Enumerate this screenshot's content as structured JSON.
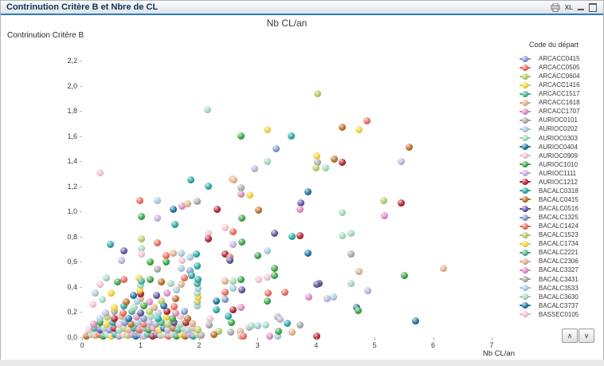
{
  "window": {
    "title": "Contrinution Critère B et Nbre de CL",
    "icons": {
      "excel_label": "XL"
    }
  },
  "legend_scroll": {
    "up_glyph": "∧",
    "down_glyph": "∨"
  },
  "chart_data": {
    "type": "scatter",
    "title": "Nb CL/an",
    "xlabel": "Nb CL/an",
    "ylabel": "Contrinution Critère B",
    "xlim": [
      0,
      7
    ],
    "ylim": [
      0,
      2.2
    ],
    "x_ticks": [
      "0",
      "1",
      "2",
      "3",
      "4",
      "5",
      "6",
      "7"
    ],
    "y_ticks": [
      "0,0",
      "0,2",
      "0,4",
      "0,6",
      "0,8",
      "1,0",
      "1,2",
      "1,4",
      "1,6",
      "1,8",
      "2,0",
      "2,2"
    ],
    "grid": false,
    "legend_position": "right",
    "legend_title": "Code du départ",
    "palette": [
      "#7E9AC8",
      "#EC6A5A",
      "#B5CC6A",
      "#F2D33E",
      "#4FAE92",
      "#DFB18C",
      "#DE8BC0",
      "#A9A9A9",
      "#A5CBDC",
      "#A5D9B8",
      "#1D739E",
      "#F5C3D4",
      "#3DA348",
      "#C2B2DC",
      "#B02231",
      "#25A8A2",
      "#BD6C29",
      "#62539C"
    ],
    "legend": [
      {
        "label": "ARCACC0415",
        "color_index": 0
      },
      {
        "label": "ARCACC0505",
        "color_index": 1
      },
      {
        "label": "ARCACC0604",
        "color_index": 2
      },
      {
        "label": "ARCACC1416",
        "color_index": 3
      },
      {
        "label": "ARCACC1517",
        "color_index": 4
      },
      {
        "label": "ARCACC1618",
        "color_index": 5
      },
      {
        "label": "ARCACC1707",
        "color_index": 6
      },
      {
        "label": "AURIOC0101",
        "color_index": 7
      },
      {
        "label": "AURIOC0202",
        "color_index": 8
      },
      {
        "label": "AURIOC0303",
        "color_index": 9
      },
      {
        "label": "AURIOC0404",
        "color_index": 10
      },
      {
        "label": "AURIOC0909",
        "color_index": 11
      },
      {
        "label": "AURIOC1010",
        "color_index": 12
      },
      {
        "label": "AURIOC1111",
        "color_index": 13
      },
      {
        "label": "AURIOC1212",
        "color_index": 14
      },
      {
        "label": "BACALC0318",
        "color_index": 15
      },
      {
        "label": "BACALC0415",
        "color_index": 16
      },
      {
        "label": "BACALC0516",
        "color_index": 17
      },
      {
        "label": "BACALC1325",
        "color_index": 0
      },
      {
        "label": "BACALC1424",
        "color_index": 1
      },
      {
        "label": "BACALC1523",
        "color_index": 2
      },
      {
        "label": "BACALC1734",
        "color_index": 3
      },
      {
        "label": "BACALC2221",
        "color_index": 4
      },
      {
        "label": "BACALC2306",
        "color_index": 5
      },
      {
        "label": "BACALC3327",
        "color_index": 6
      },
      {
        "label": "BACALC3431",
        "color_index": 7
      },
      {
        "label": "BACALC3533",
        "color_index": 8
      },
      {
        "label": "BACALC3630",
        "color_index": 9
      },
      {
        "label": "BACALC3737",
        "color_index": 10
      },
      {
        "label": "BASSEC0105",
        "color_index": 11
      }
    ],
    "points": [
      [
        2.15,
        1.81,
        9
      ],
      [
        4.03,
        1.94,
        2
      ],
      [
        3.16,
        1.65,
        3
      ],
      [
        2.72,
        1.6,
        12
      ],
      [
        3.58,
        1.6,
        15
      ],
      [
        3.31,
        1.5,
        0
      ],
      [
        3.16,
        1.4,
        9
      ],
      [
        2.95,
        1.34,
        13
      ],
      [
        4.44,
        1.67,
        16
      ],
      [
        4.73,
        1.65,
        3
      ],
      [
        4.87,
        1.72,
        1
      ],
      [
        5.59,
        1.51,
        16
      ],
      [
        5.46,
        1.4,
        13
      ],
      [
        4.01,
        1.44,
        3
      ],
      [
        4.03,
        1.39,
        7
      ],
      [
        4.0,
        1.35,
        2
      ],
      [
        4.16,
        1.35,
        9
      ],
      [
        4.31,
        1.42,
        16
      ],
      [
        4.44,
        1.39,
        14
      ],
      [
        2.57,
        1.26,
        5
      ],
      [
        1.86,
        1.25,
        15
      ],
      [
        2.16,
        1.2,
        15
      ],
      [
        2.59,
        1.25,
        5
      ],
      [
        2.72,
        1.19,
        7
      ],
      [
        2.72,
        1.14,
        6
      ],
      [
        2.86,
        1.13,
        3
      ],
      [
        3.86,
        1.16,
        10
      ],
      [
        3.74,
        1.07,
        17
      ],
      [
        3.73,
        1.02,
        6
      ],
      [
        3.01,
        1.01,
        16
      ],
      [
        5.16,
        1.09,
        2
      ],
      [
        5.45,
        1.07,
        14
      ],
      [
        5.17,
        0.97,
        6
      ],
      [
        4.45,
        0.99,
        9
      ],
      [
        0.31,
        1.31,
        11
      ],
      [
        0.99,
        1.09,
        1
      ],
      [
        1.29,
        1.09,
        8
      ],
      [
        1.56,
        1.02,
        10
      ],
      [
        1.71,
        1.04,
        6
      ],
      [
        1.81,
        1.06,
        5
      ],
      [
        1.97,
        1.08,
        7
      ],
      [
        2.31,
        1.02,
        14
      ],
      [
        1.02,
        0.96,
        12
      ],
      [
        1.29,
        0.95,
        13
      ],
      [
        1.58,
        0.9,
        15
      ],
      [
        2.73,
        0.95,
        12
      ],
      [
        2.45,
        0.87,
        11
      ],
      [
        2.16,
        0.83,
        11
      ],
      [
        2.58,
        0.84,
        1
      ],
      [
        2.16,
        0.78,
        14
      ],
      [
        1.01,
        0.78,
        2
      ],
      [
        0.49,
        0.74,
        15
      ],
      [
        1.29,
        0.75,
        1
      ],
      [
        2.58,
        0.74,
        13
      ],
      [
        2.73,
        0.76,
        12
      ],
      [
        0.72,
        0.69,
        17
      ],
      [
        1.02,
        0.71,
        9
      ],
      [
        1.01,
        0.66,
        11
      ],
      [
        1.44,
        0.65,
        1
      ],
      [
        1.56,
        0.67,
        5
      ],
      [
        1.7,
        0.67,
        8
      ],
      [
        0.68,
        0.61,
        13
      ],
      [
        1.43,
        0.6,
        12
      ],
      [
        1.71,
        0.61,
        11
      ],
      [
        1.84,
        0.64,
        8
      ],
      [
        1.96,
        0.66,
        15
      ],
      [
        2.45,
        0.66,
        14
      ],
      [
        2.53,
        0.64,
        1
      ],
      [
        1.16,
        0.6,
        12
      ],
      [
        1.29,
        0.54,
        7
      ],
      [
        1.7,
        0.55,
        8
      ],
      [
        1.84,
        0.53,
        0
      ],
      [
        1.97,
        0.57,
        15
      ],
      [
        2.52,
        0.61,
        17
      ],
      [
        3.29,
        0.83,
        17
      ],
      [
        3.59,
        0.8,
        15
      ],
      [
        3.73,
        0.81,
        14
      ],
      [
        4.45,
        0.81,
        9
      ],
      [
        4.6,
        0.83,
        9
      ],
      [
        3.16,
        0.69,
        8
      ],
      [
        3.0,
        0.65,
        12
      ],
      [
        3.86,
        0.67,
        10
      ],
      [
        4.6,
        0.66,
        7
      ],
      [
        3.29,
        0.55,
        12
      ],
      [
        3.29,
        0.49,
        12
      ],
      [
        3.16,
        0.48,
        11
      ],
      [
        4.73,
        0.52,
        5
      ],
      [
        6.18,
        0.55,
        5
      ],
      [
        5.51,
        0.49,
        12
      ],
      [
        4.6,
        0.43,
        9
      ],
      [
        4.88,
        0.37,
        13
      ],
      [
        4.3,
        0.32,
        8
      ],
      [
        4.19,
        0.31,
        13
      ],
      [
        4.69,
        0.24,
        10
      ],
      [
        4.72,
        0.21,
        12
      ],
      [
        5.7,
        0.13,
        10
      ],
      [
        4.05,
        0.43,
        17
      ],
      [
        4.01,
        0.01,
        14
      ],
      [
        2.44,
        0.45,
        5
      ],
      [
        2.58,
        0.45,
        9
      ],
      [
        2.72,
        0.46,
        12
      ],
      [
        3.02,
        0.46,
        11
      ],
      [
        4.01,
        0.42,
        17
      ],
      [
        2.58,
        0.39,
        8
      ],
      [
        2.73,
        0.38,
        17
      ],
      [
        2.44,
        0.36,
        1
      ],
      [
        2.44,
        0.3,
        0
      ],
      [
        2.29,
        0.29,
        10
      ],
      [
        3.18,
        0.35,
        1
      ],
      [
        3.17,
        0.29,
        12
      ],
      [
        3.46,
        0.36,
        1
      ],
      [
        3.87,
        0.32,
        6
      ],
      [
        2.72,
        0.24,
        6
      ],
      [
        2.58,
        0.22,
        14
      ],
      [
        2.5,
        0.17,
        15
      ],
      [
        2.55,
        0.12,
        12
      ],
      [
        2.3,
        0.22,
        15
      ],
      [
        2.19,
        0.15,
        11
      ],
      [
        2.17,
        0.1,
        7
      ],
      [
        2.34,
        0.05,
        2
      ],
      [
        2.54,
        0.04,
        7
      ],
      [
        2.26,
        0.02,
        16
      ],
      [
        2.7,
        0.05,
        5
      ],
      [
        2.72,
        0.01,
        5
      ],
      [
        2.76,
        0.01,
        1
      ],
      [
        2.85,
        0.08,
        13
      ],
      [
        2.9,
        0.09,
        9
      ],
      [
        3.0,
        0.09,
        8
      ],
      [
        3.14,
        0.1,
        9
      ],
      [
        3.34,
        0.16,
        7
      ],
      [
        3.38,
        0.14,
        13
      ],
      [
        3.5,
        0.11,
        15
      ],
      [
        3.73,
        0.1,
        7
      ],
      [
        3.35,
        0.01,
        8
      ],
      [
        3.36,
        0.05,
        12
      ],
      [
        3.59,
        0.04,
        5
      ],
      [
        3.21,
        0.01,
        6
      ],
      [
        0.6,
        0.44,
        12
      ],
      [
        0.71,
        0.46,
        1
      ],
      [
        1.17,
        0.46,
        12
      ],
      [
        1.75,
        0.47,
        1
      ],
      [
        1.87,
        0.49,
        15
      ],
      [
        0.23,
        0.35,
        8
      ],
      [
        0.35,
        0.3,
        9
      ],
      [
        0.18,
        0.26,
        11
      ],
      [
        1.28,
        0.33,
        17
      ],
      [
        1.45,
        0.35,
        6
      ],
      [
        1.6,
        0.31,
        16
      ],
      [
        1.52,
        0.43,
        9
      ],
      [
        1.35,
        0.44,
        16
      ],
      [
        0.88,
        0.33,
        10
      ],
      [
        0.5,
        0.35,
        3
      ],
      [
        1.62,
        0.38,
        8
      ],
      [
        1.7,
        0.42,
        5
      ],
      [
        0.3,
        0.42,
        11
      ],
      [
        0.42,
        0.47,
        9
      ],
      [
        0.98,
        0.47,
        3
      ],
      [
        1.0,
        0.31,
        5
      ],
      [
        1.0,
        0.345,
        14
      ],
      [
        0.99,
        0.38,
        3
      ],
      [
        1.0,
        0.415,
        9
      ],
      [
        1.01,
        0.45,
        4
      ],
      [
        1.97,
        0.25,
        8
      ],
      [
        1.97,
        0.285,
        2
      ],
      [
        1.98,
        0.32,
        3
      ],
      [
        1.97,
        0.355,
        9
      ],
      [
        1.98,
        0.39,
        8
      ],
      [
        1.97,
        0.425,
        4
      ],
      [
        1.98,
        0.46,
        15
      ],
      [
        0.08,
        0.012,
        16
      ],
      [
        0.15,
        0.022,
        9
      ],
      [
        0.22,
        0.015,
        5
      ],
      [
        0.29,
        0.025,
        1
      ],
      [
        0.36,
        0.01,
        12
      ],
      [
        0.43,
        0.02,
        8
      ],
      [
        0.5,
        0.012,
        3
      ],
      [
        0.57,
        0.024,
        15
      ],
      [
        0.64,
        0.01,
        7
      ],
      [
        0.71,
        0.022,
        11
      ],
      [
        0.78,
        0.014,
        2
      ],
      [
        0.85,
        0.025,
        6
      ],
      [
        0.92,
        0.01,
        10
      ],
      [
        0.99,
        0.02,
        0
      ],
      [
        1.06,
        0.012,
        13
      ],
      [
        1.13,
        0.024,
        4
      ],
      [
        1.2,
        0.01,
        14
      ],
      [
        1.27,
        0.022,
        17
      ],
      [
        1.34,
        0.013,
        5
      ],
      [
        1.41,
        0.024,
        9
      ],
      [
        1.48,
        0.01,
        1
      ],
      [
        1.55,
        0.022,
        8
      ],
      [
        1.62,
        0.012,
        12
      ],
      [
        1.69,
        0.024,
        3
      ],
      [
        1.76,
        0.012,
        16
      ],
      [
        1.83,
        0.023,
        6
      ],
      [
        1.9,
        0.012,
        15
      ],
      [
        1.97,
        0.022,
        2
      ],
      [
        2.04,
        0.013,
        7
      ],
      [
        0.12,
        0.058,
        11
      ],
      [
        0.21,
        0.07,
        4
      ],
      [
        0.3,
        0.06,
        17
      ],
      [
        0.38,
        0.072,
        8
      ],
      [
        0.47,
        0.058,
        0
      ],
      [
        0.55,
        0.07,
        14
      ],
      [
        0.63,
        0.06,
        9
      ],
      [
        0.72,
        0.072,
        2
      ],
      [
        0.8,
        0.058,
        5
      ],
      [
        0.89,
        0.07,
        15
      ],
      [
        0.97,
        0.062,
        1
      ],
      [
        1.05,
        0.072,
        7
      ],
      [
        1.14,
        0.058,
        12
      ],
      [
        1.22,
        0.07,
        6
      ],
      [
        1.31,
        0.06,
        3
      ],
      [
        1.39,
        0.072,
        10
      ],
      [
        1.47,
        0.058,
        13
      ],
      [
        1.56,
        0.07,
        16
      ],
      [
        1.64,
        0.062,
        4
      ],
      [
        1.73,
        0.072,
        9
      ],
      [
        1.81,
        0.058,
        8
      ],
      [
        1.9,
        0.07,
        5
      ],
      [
        1.98,
        0.062,
        2
      ],
      [
        0.2,
        0.105,
        6
      ],
      [
        0.31,
        0.115,
        12
      ],
      [
        0.42,
        0.102,
        3
      ],
      [
        0.52,
        0.118,
        15
      ],
      [
        0.63,
        0.105,
        11
      ],
      [
        0.73,
        0.115,
        0
      ],
      [
        0.84,
        0.102,
        16
      ],
      [
        0.94,
        0.118,
        8
      ],
      [
        1.05,
        0.105,
        1
      ],
      [
        1.15,
        0.115,
        13
      ],
      [
        1.26,
        0.102,
        7
      ],
      [
        1.36,
        0.118,
        4
      ],
      [
        1.47,
        0.105,
        2
      ],
      [
        1.57,
        0.115,
        17
      ],
      [
        1.68,
        0.102,
        9
      ],
      [
        1.78,
        0.118,
        14
      ],
      [
        1.89,
        0.108,
        5
      ],
      [
        0.3,
        0.148,
        8
      ],
      [
        0.43,
        0.162,
        2
      ],
      [
        0.55,
        0.15,
        14
      ],
      [
        0.68,
        0.165,
        5
      ],
      [
        0.8,
        0.148,
        10
      ],
      [
        0.93,
        0.162,
        6
      ],
      [
        1.05,
        0.15,
        0
      ],
      [
        1.18,
        0.165,
        9
      ],
      [
        1.3,
        0.148,
        15
      ],
      [
        1.43,
        0.162,
        3
      ],
      [
        1.55,
        0.152,
        12
      ],
      [
        1.68,
        0.165,
        11
      ],
      [
        1.8,
        0.15,
        16
      ],
      [
        0.4,
        0.192,
        13
      ],
      [
        0.55,
        0.205,
        7
      ],
      [
        0.7,
        0.195,
        1
      ],
      [
        0.85,
        0.208,
        4
      ],
      [
        1.0,
        0.192,
        17
      ],
      [
        1.15,
        0.205,
        2
      ],
      [
        1.3,
        0.195,
        8
      ],
      [
        1.45,
        0.208,
        14
      ],
      [
        1.6,
        0.195,
        6
      ],
      [
        1.75,
        0.205,
        0
      ],
      [
        0.55,
        0.238,
        3
      ],
      [
        0.72,
        0.25,
        15
      ],
      [
        0.89,
        0.24,
        9
      ],
      [
        1.06,
        0.252,
        12
      ],
      [
        1.23,
        0.24,
        5
      ],
      [
        1.4,
        0.252,
        10
      ],
      [
        1.57,
        0.242,
        1
      ],
      [
        0.75,
        0.282,
        16
      ],
      [
        0.95,
        0.29,
        8
      ],
      [
        1.15,
        0.282,
        6
      ],
      [
        1.35,
        0.29,
        2
      ]
    ]
  }
}
